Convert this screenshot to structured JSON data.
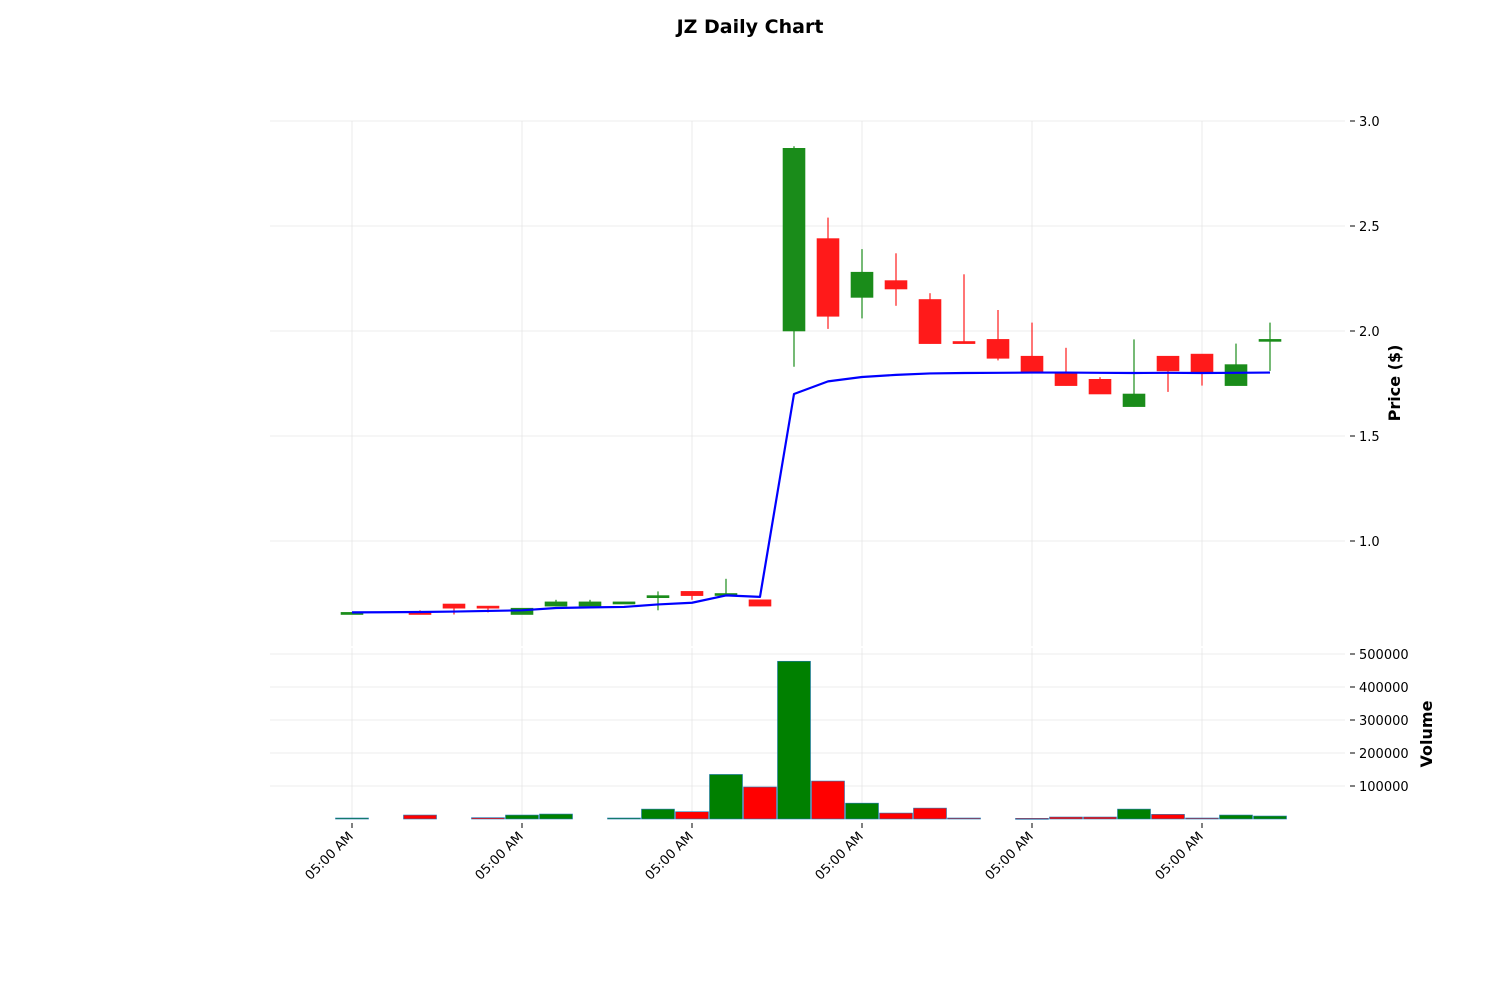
{
  "chart_data": {
    "type": "candlestick",
    "title": "JZ Daily Chart",
    "price_panel": {
      "ylabel": "Price ($)",
      "ylim": [
        0.5,
        3.0
      ],
      "yticks": [
        1.0,
        1.5,
        2.0,
        2.5,
        3.0
      ],
      "grid": true
    },
    "volume_panel": {
      "ylabel": "Volume",
      "ylim": [
        0,
        500000
      ],
      "yticks": [
        100000,
        200000,
        300000,
        400000,
        500000
      ],
      "grid": true
    },
    "xlabel": "",
    "x_tick_labels": [
      "05:00 AM",
      "05:00 AM",
      "05:00 AM",
      "05:00 AM",
      "05:00 AM",
      "05:00 AM"
    ],
    "x_tick_positions": [
      0,
      5,
      10,
      15,
      20,
      25
    ],
    "candles": [
      {
        "i": 0,
        "open": 0.65,
        "high": 0.66,
        "low": 0.65,
        "close": 0.66,
        "volume": 3000
      },
      {
        "i": 2,
        "open": 0.66,
        "high": 0.67,
        "low": 0.65,
        "close": 0.65,
        "volume": 12000
      },
      {
        "i": 3,
        "open": 0.7,
        "high": 0.7,
        "low": 0.65,
        "close": 0.68,
        "volume": 0
      },
      {
        "i": 4,
        "open": 0.69,
        "high": 0.69,
        "low": 0.66,
        "close": 0.68,
        "volume": 4000
      },
      {
        "i": 5,
        "open": 0.65,
        "high": 0.68,
        "low": 0.65,
        "close": 0.68,
        "volume": 12000
      },
      {
        "i": 6,
        "open": 0.69,
        "high": 0.72,
        "low": 0.69,
        "close": 0.71,
        "volume": 15000
      },
      {
        "i": 7,
        "open": 0.69,
        "high": 0.72,
        "low": 0.69,
        "close": 0.71,
        "volume": 0
      },
      {
        "i": 8,
        "open": 0.7,
        "high": 0.71,
        "low": 0.7,
        "close": 0.71,
        "volume": 3000
      },
      {
        "i": 9,
        "open": 0.73,
        "high": 0.76,
        "low": 0.67,
        "close": 0.74,
        "volume": 30000
      },
      {
        "i": 10,
        "open": 0.76,
        "high": 0.76,
        "low": 0.72,
        "close": 0.74,
        "volume": 22000
      },
      {
        "i": 11,
        "open": 0.75,
        "high": 0.82,
        "low": 0.75,
        "close": 0.75,
        "volume": 135000
      },
      {
        "i": 12,
        "open": 0.72,
        "high": 0.72,
        "low": 0.69,
        "close": 0.69,
        "volume": 97000
      },
      {
        "i": 13,
        "open": 2.0,
        "high": 2.88,
        "low": 1.83,
        "close": 2.87,
        "volume": 478000
      },
      {
        "i": 14,
        "open": 2.44,
        "high": 2.54,
        "low": 2.01,
        "close": 2.07,
        "volume": 115000
      },
      {
        "i": 15,
        "open": 2.16,
        "high": 2.39,
        "low": 2.06,
        "close": 2.28,
        "volume": 48000
      },
      {
        "i": 16,
        "open": 2.24,
        "high": 2.37,
        "low": 2.12,
        "close": 2.2,
        "volume": 18000
      },
      {
        "i": 17,
        "open": 2.15,
        "high": 2.18,
        "low": 1.94,
        "close": 1.94,
        "volume": 33000
      },
      {
        "i": 18,
        "open": 1.95,
        "high": 2.27,
        "low": 1.94,
        "close": 1.94,
        "volume": 3000
      },
      {
        "i": 19,
        "open": 1.96,
        "high": 2.1,
        "low": 1.86,
        "close": 1.87,
        "volume": 0
      },
      {
        "i": 20,
        "open": 1.88,
        "high": 2.04,
        "low": 1.8,
        "close": 1.8,
        "volume": 2000
      },
      {
        "i": 21,
        "open": 1.8,
        "high": 1.92,
        "low": 1.74,
        "close": 1.74,
        "volume": 6000
      },
      {
        "i": 22,
        "open": 1.77,
        "high": 1.78,
        "low": 1.7,
        "close": 1.7,
        "volume": 6000
      },
      {
        "i": 23,
        "open": 1.64,
        "high": 1.96,
        "low": 1.64,
        "close": 1.7,
        "volume": 30000
      },
      {
        "i": 24,
        "open": 1.88,
        "high": 1.88,
        "low": 1.71,
        "close": 1.81,
        "volume": 14000
      },
      {
        "i": 25,
        "open": 1.89,
        "high": 1.89,
        "low": 1.74,
        "close": 1.8,
        "volume": 3000
      },
      {
        "i": 26,
        "open": 1.74,
        "high": 1.94,
        "low": 1.74,
        "close": 1.84,
        "volume": 12000
      },
      {
        "i": 27,
        "open": 1.96,
        "high": 2.04,
        "low": 1.81,
        "close": 1.96,
        "volume": 9000
      }
    ],
    "moving_average": {
      "color": "#0000ff",
      "values": [
        {
          "i": 0,
          "value": 0.66
        },
        {
          "i": 2,
          "value": 0.662
        },
        {
          "i": 3,
          "value": 0.664
        },
        {
          "i": 4,
          "value": 0.667
        },
        {
          "i": 5,
          "value": 0.67
        },
        {
          "i": 6,
          "value": 0.681
        },
        {
          "i": 7,
          "value": 0.684
        },
        {
          "i": 8,
          "value": 0.686
        },
        {
          "i": 9,
          "value": 0.698
        },
        {
          "i": 10,
          "value": 0.706
        },
        {
          "i": 11,
          "value": 0.741
        },
        {
          "i": 12,
          "value": 0.734
        },
        {
          "i": 13,
          "value": 1.7
        },
        {
          "i": 14,
          "value": 1.76
        },
        {
          "i": 15,
          "value": 1.781
        },
        {
          "i": 16,
          "value": 1.791
        },
        {
          "i": 17,
          "value": 1.798
        },
        {
          "i": 18,
          "value": 1.8
        },
        {
          "i": 19,
          "value": 1.801
        },
        {
          "i": 20,
          "value": 1.802
        },
        {
          "i": 21,
          "value": 1.802
        },
        {
          "i": 22,
          "value": 1.801
        },
        {
          "i": 23,
          "value": 1.8
        },
        {
          "i": 24,
          "value": 1.801
        },
        {
          "i": 25,
          "value": 1.8
        },
        {
          "i": 26,
          "value": 1.801
        },
        {
          "i": 27,
          "value": 1.802
        }
      ]
    },
    "colors": {
      "up": "#1a8c1a",
      "down": "#ff1a1a",
      "volume_up": "#008000",
      "volume_down": "#ff0000",
      "grid": "#e6e6e6"
    }
  }
}
